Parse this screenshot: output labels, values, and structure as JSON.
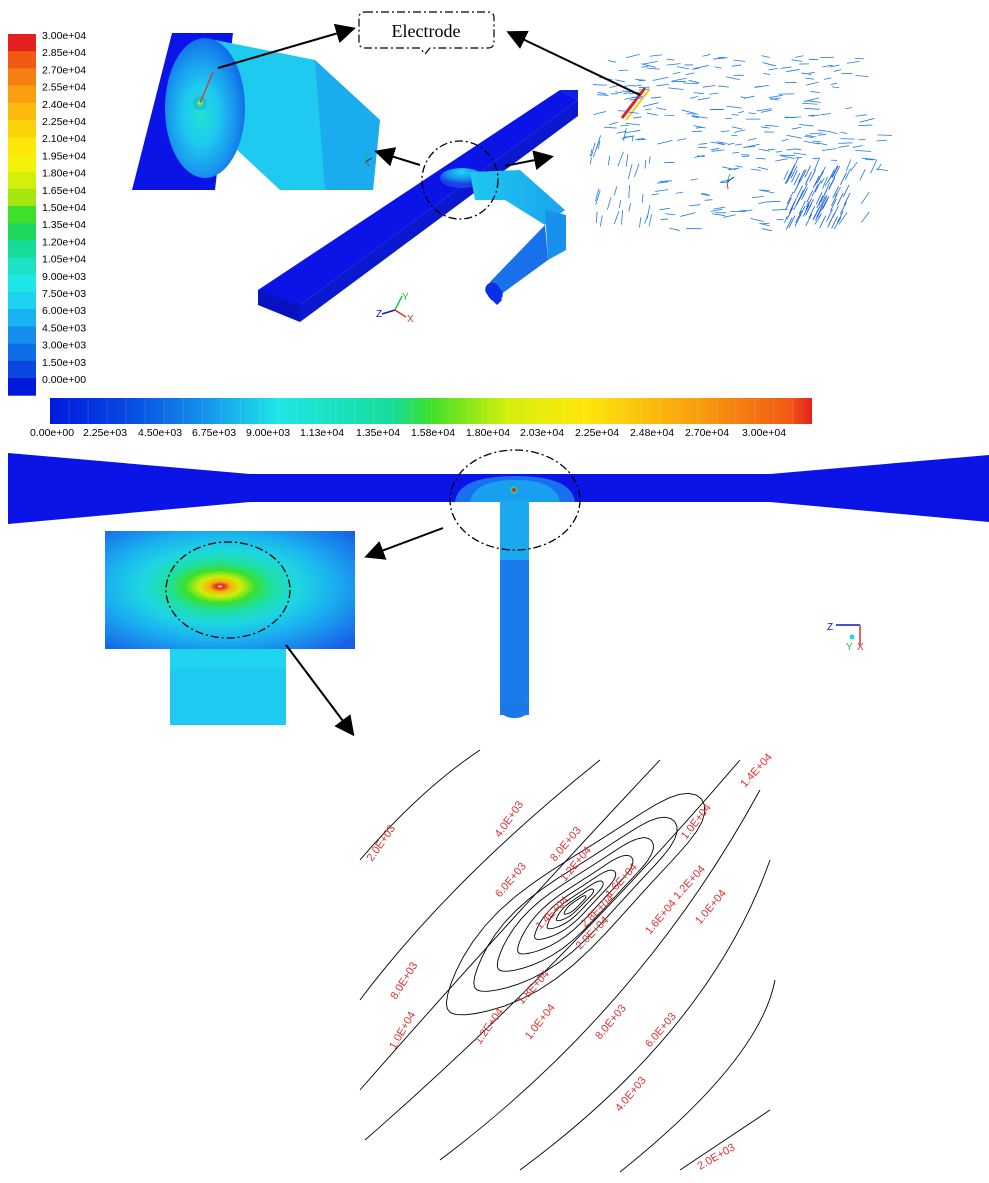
{
  "callout_label": "Electrode",
  "legend_vertical": {
    "labels": [
      "3.00e+04",
      "2.85e+04",
      "2.70e+04",
      "2.55e+04",
      "2.40e+04",
      "2.25e+04",
      "2.10e+04",
      "1.95e+04",
      "1.80e+04",
      "1.65e+04",
      "1.50e+04",
      "1.35e+04",
      "1.20e+04",
      "1.05e+04",
      "9.00e+03",
      "7.50e+03",
      "6.00e+03",
      "4.50e+03",
      "3.00e+03",
      "1.50e+03",
      "0.00e+00"
    ],
    "colors": [
      "#e6201e",
      "#f05a14",
      "#f57f10",
      "#f99e0e",
      "#fbba0c",
      "#fcd30a",
      "#fde80a",
      "#f3f208",
      "#d3ef0a",
      "#a5e611",
      "#3ee02a",
      "#1ed85e",
      "#16dc9a",
      "#1be2c4",
      "#1fe6e6",
      "#1ed2f2",
      "#18b2f0",
      "#1490ec",
      "#0e6ee6",
      "#0848e0",
      "#0018dc"
    ]
  },
  "legend_horizontal": {
    "labels": [
      "0.00e+00",
      "2.25e+03",
      "4.50e+03",
      "6.75e+03",
      "9.00e+03",
      "1.13e+04",
      "1.35e+04",
      "1.58e+04",
      "1.80e+04",
      "2.03e+04",
      "2.25e+04",
      "2.48e+04",
      "2.70e+04",
      "3.00e+04"
    ]
  },
  "axes_triads": {
    "top": [
      "Y",
      "Z",
      "X"
    ],
    "middle": [
      "Z",
      "Y",
      "X"
    ]
  },
  "contour_labels": [
    "2.0E+03",
    "4.0E+03",
    "8.0E+03",
    "1.0E+04",
    "1.4E+04",
    "6.0E+03",
    "1.2E+04",
    "1.6E+04",
    "1.6E+04",
    "1.2E+04",
    "1.0E+04",
    "1.4E+04",
    "2.8E+04",
    "2.0E+04",
    "1.8E+04",
    "8.0E+03",
    "1.0E+04",
    "1.2E+04",
    "1.0E+04",
    "8.0E+03",
    "6.0E+03",
    "4.0E+03",
    "2.0E+03"
  ],
  "colors": {
    "deep_blue": "#0a14e6",
    "mid_blue": "#1a6ef0",
    "cyan": "#1fd3f0",
    "hot": "#e6201e"
  }
}
